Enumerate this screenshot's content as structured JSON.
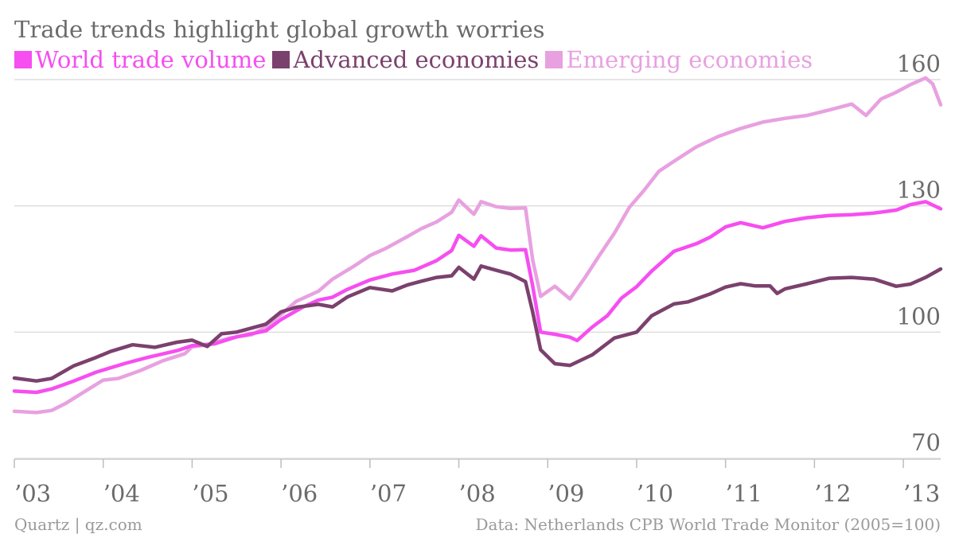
{
  "chart_data": {
    "type": "line",
    "title": "Trade trends highlight global growth worries",
    "xlabel": "",
    "ylabel": "",
    "source": "Data: Netherlands CPB World Trade Monitor (2005=100)",
    "credit": "Quartz | qz.com",
    "ylim": [
      70,
      165
    ],
    "xlim": [
      2003.0,
      2013.42
    ],
    "yticks": [
      70,
      100,
      130,
      160
    ],
    "xticks": [
      {
        "value": 2003,
        "label": "’03"
      },
      {
        "value": 2004,
        "label": "’04"
      },
      {
        "value": 2005,
        "label": "’05"
      },
      {
        "value": 2006,
        "label": "’06"
      },
      {
        "value": 2007,
        "label": "’07"
      },
      {
        "value": 2008,
        "label": "’08"
      },
      {
        "value": 2009,
        "label": "’09"
      },
      {
        "value": 2010,
        "label": "’10"
      },
      {
        "value": 2011,
        "label": "’11"
      },
      {
        "value": 2012,
        "label": "’12"
      },
      {
        "value": 2013,
        "label": "’13"
      }
    ],
    "grid": true,
    "legend": "top-left",
    "series": [
      {
        "name": "World trade volume",
        "color": "#f64ef0",
        "points": [
          [
            2003.0,
            86.0
          ],
          [
            2003.25,
            85.7
          ],
          [
            2003.42,
            86.5
          ],
          [
            2003.67,
            88.4
          ],
          [
            2003.92,
            90.5
          ],
          [
            2004.25,
            92.6
          ],
          [
            2004.5,
            94.0
          ],
          [
            2004.83,
            95.6
          ],
          [
            2005.0,
            96.8
          ],
          [
            2005.25,
            97.2
          ],
          [
            2005.5,
            98.9
          ],
          [
            2005.83,
            100.3
          ],
          [
            2006.0,
            103.0
          ],
          [
            2006.25,
            106.0
          ],
          [
            2006.42,
            107.6
          ],
          [
            2006.58,
            108.3
          ],
          [
            2006.75,
            110.2
          ],
          [
            2007.0,
            112.4
          ],
          [
            2007.25,
            113.8
          ],
          [
            2007.5,
            114.7
          ],
          [
            2007.75,
            117.0
          ],
          [
            2007.92,
            119.4
          ],
          [
            2008.0,
            123.0
          ],
          [
            2008.17,
            120.4
          ],
          [
            2008.25,
            122.9
          ],
          [
            2008.42,
            120.0
          ],
          [
            2008.58,
            119.5
          ],
          [
            2008.75,
            119.6
          ],
          [
            2008.83,
            111.0
          ],
          [
            2008.92,
            100.0
          ],
          [
            2009.08,
            99.5
          ],
          [
            2009.25,
            98.8
          ],
          [
            2009.33,
            98.0
          ],
          [
            2009.5,
            101.2
          ],
          [
            2009.67,
            103.9
          ],
          [
            2009.83,
            108.1
          ],
          [
            2010.0,
            110.8
          ],
          [
            2010.17,
            114.5
          ],
          [
            2010.42,
            119.2
          ],
          [
            2010.67,
            121.0
          ],
          [
            2010.83,
            122.6
          ],
          [
            2011.0,
            125.0
          ],
          [
            2011.17,
            126.0
          ],
          [
            2011.42,
            124.8
          ],
          [
            2011.67,
            126.3
          ],
          [
            2011.92,
            127.2
          ],
          [
            2012.17,
            127.7
          ],
          [
            2012.42,
            127.9
          ],
          [
            2012.67,
            128.3
          ],
          [
            2012.92,
            129.0
          ],
          [
            2013.08,
            130.3
          ],
          [
            2013.25,
            131.0
          ],
          [
            2013.42,
            129.3
          ]
        ]
      },
      {
        "name": "Advanced economies",
        "color": "#7b416d",
        "points": [
          [
            2003.0,
            89.1
          ],
          [
            2003.25,
            88.4
          ],
          [
            2003.42,
            89.0
          ],
          [
            2003.67,
            92.0
          ],
          [
            2003.92,
            94.0
          ],
          [
            2004.08,
            95.4
          ],
          [
            2004.33,
            97.0
          ],
          [
            2004.58,
            96.4
          ],
          [
            2004.83,
            97.6
          ],
          [
            2005.0,
            98.1
          ],
          [
            2005.17,
            96.6
          ],
          [
            2005.33,
            99.6
          ],
          [
            2005.5,
            100.0
          ],
          [
            2005.83,
            101.9
          ],
          [
            2006.0,
            104.8
          ],
          [
            2006.17,
            105.9
          ],
          [
            2006.42,
            106.6
          ],
          [
            2006.58,
            106.0
          ],
          [
            2006.75,
            108.4
          ],
          [
            2007.0,
            110.6
          ],
          [
            2007.25,
            109.8
          ],
          [
            2007.42,
            111.2
          ],
          [
            2007.58,
            112.1
          ],
          [
            2007.75,
            113.0
          ],
          [
            2007.92,
            113.4
          ],
          [
            2008.0,
            115.4
          ],
          [
            2008.17,
            112.6
          ],
          [
            2008.25,
            115.7
          ],
          [
            2008.42,
            114.7
          ],
          [
            2008.58,
            113.8
          ],
          [
            2008.75,
            112.0
          ],
          [
            2008.83,
            104.8
          ],
          [
            2008.92,
            95.8
          ],
          [
            2009.08,
            92.5
          ],
          [
            2009.25,
            92.1
          ],
          [
            2009.5,
            94.6
          ],
          [
            2009.75,
            98.6
          ],
          [
            2010.0,
            100.0
          ],
          [
            2010.17,
            103.9
          ],
          [
            2010.42,
            106.7
          ],
          [
            2010.58,
            107.2
          ],
          [
            2010.83,
            109.1
          ],
          [
            2011.0,
            110.7
          ],
          [
            2011.17,
            111.5
          ],
          [
            2011.33,
            111.0
          ],
          [
            2011.5,
            111.0
          ],
          [
            2011.58,
            109.2
          ],
          [
            2011.67,
            110.3
          ],
          [
            2011.92,
            111.5
          ],
          [
            2012.17,
            112.8
          ],
          [
            2012.42,
            113.0
          ],
          [
            2012.67,
            112.6
          ],
          [
            2012.92,
            110.9
          ],
          [
            2013.08,
            111.4
          ],
          [
            2013.25,
            113.0
          ],
          [
            2013.42,
            115.0
          ]
        ]
      },
      {
        "name": "Emerging economies",
        "color": "#e8a1e0",
        "points": [
          [
            2003.0,
            81.2
          ],
          [
            2003.25,
            80.9
          ],
          [
            2003.42,
            81.4
          ],
          [
            2003.58,
            83.1
          ],
          [
            2003.83,
            86.4
          ],
          [
            2004.0,
            88.6
          ],
          [
            2004.17,
            89.0
          ],
          [
            2004.42,
            90.9
          ],
          [
            2004.67,
            93.2
          ],
          [
            2004.92,
            94.9
          ],
          [
            2005.0,
            96.5
          ],
          [
            2005.17,
            97.0
          ],
          [
            2005.42,
            98.6
          ],
          [
            2005.67,
            99.4
          ],
          [
            2005.83,
            101.2
          ],
          [
            2006.0,
            104.2
          ],
          [
            2006.17,
            107.3
          ],
          [
            2006.42,
            109.7
          ],
          [
            2006.58,
            112.6
          ],
          [
            2006.83,
            115.8
          ],
          [
            2007.0,
            118.2
          ],
          [
            2007.17,
            119.8
          ],
          [
            2007.42,
            122.7
          ],
          [
            2007.58,
            124.6
          ],
          [
            2007.75,
            126.2
          ],
          [
            2007.92,
            128.5
          ],
          [
            2008.0,
            131.4
          ],
          [
            2008.17,
            128.0
          ],
          [
            2008.25,
            131.0
          ],
          [
            2008.42,
            129.8
          ],
          [
            2008.58,
            129.4
          ],
          [
            2008.75,
            129.5
          ],
          [
            2008.83,
            117.2
          ],
          [
            2008.92,
            108.5
          ],
          [
            2009.08,
            110.9
          ],
          [
            2009.25,
            107.9
          ],
          [
            2009.42,
            113.0
          ],
          [
            2009.58,
            118.2
          ],
          [
            2009.75,
            123.5
          ],
          [
            2009.92,
            129.7
          ],
          [
            2010.08,
            133.6
          ],
          [
            2010.25,
            138.2
          ],
          [
            2010.42,
            140.6
          ],
          [
            2010.67,
            144.0
          ],
          [
            2010.92,
            146.5
          ],
          [
            2011.17,
            148.4
          ],
          [
            2011.42,
            149.9
          ],
          [
            2011.67,
            150.8
          ],
          [
            2011.92,
            151.5
          ],
          [
            2012.17,
            152.8
          ],
          [
            2012.42,
            154.2
          ],
          [
            2012.58,
            151.5
          ],
          [
            2012.75,
            155.4
          ],
          [
            2012.92,
            157.0
          ],
          [
            2013.08,
            158.8
          ],
          [
            2013.25,
            160.4
          ],
          [
            2013.33,
            159.0
          ],
          [
            2013.42,
            154.0
          ]
        ]
      }
    ]
  }
}
